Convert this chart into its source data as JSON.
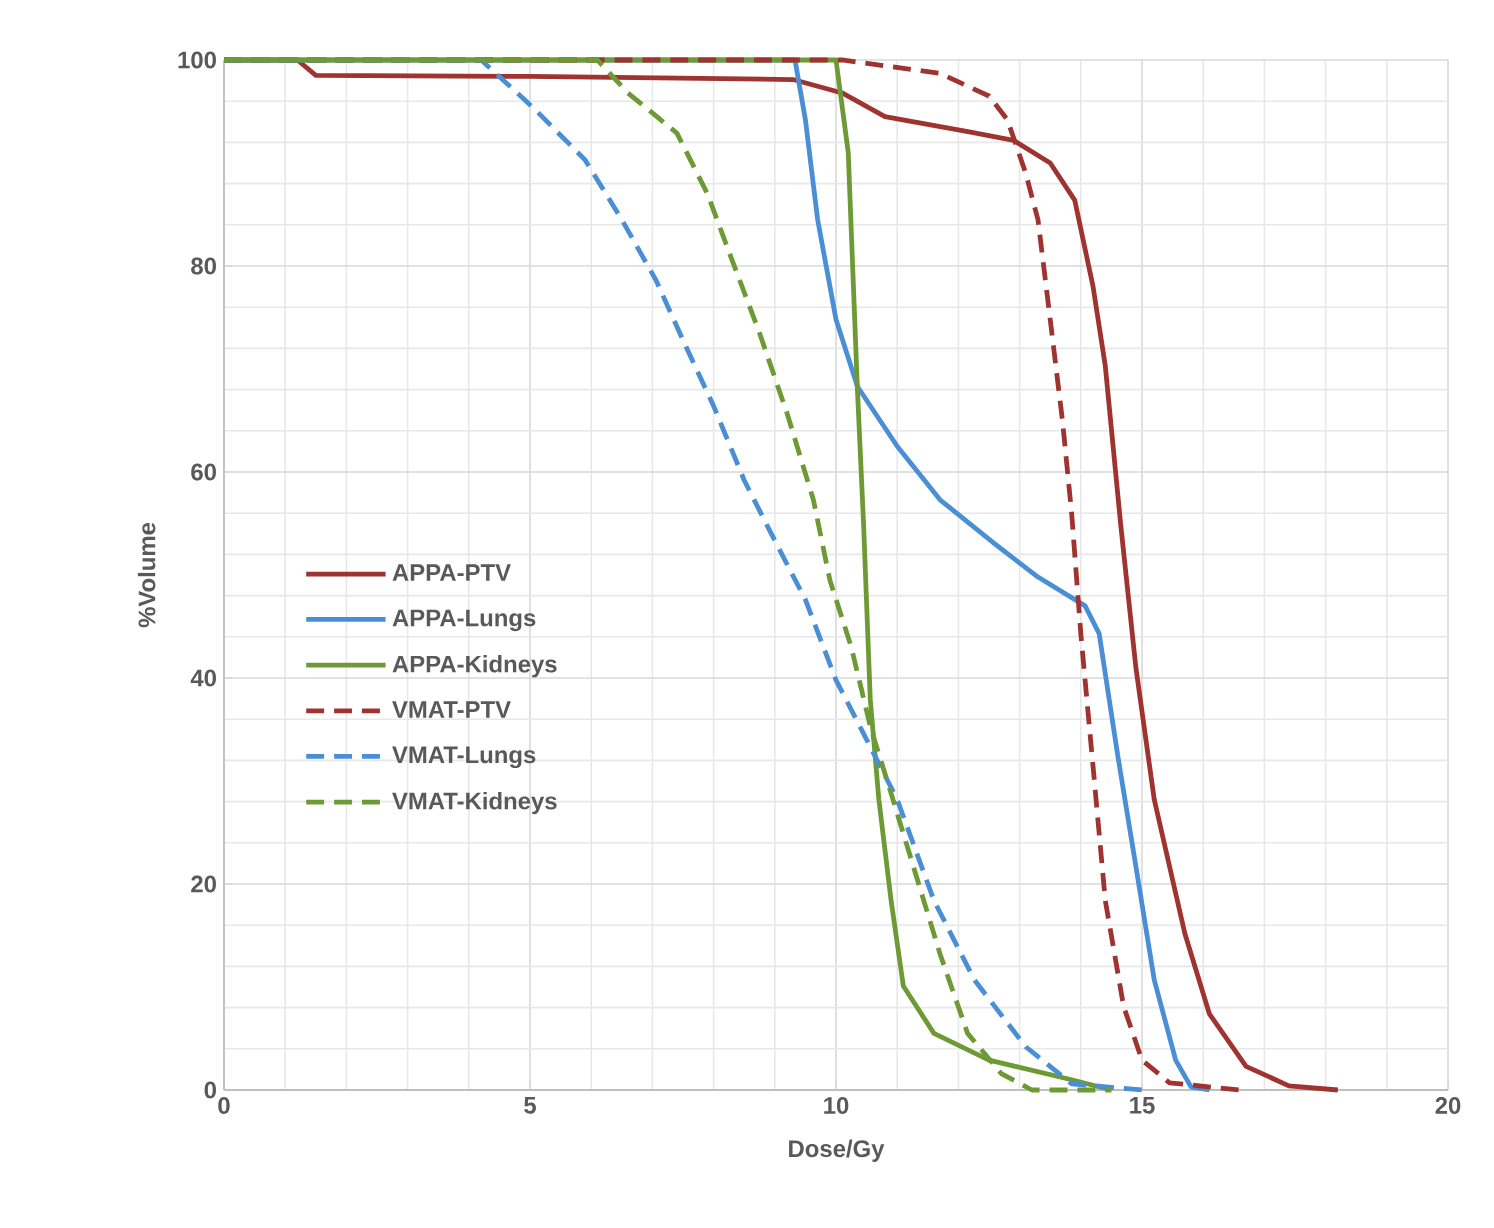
{
  "chart_data": {
    "type": "line",
    "xlabel": "Dose/Gy",
    "ylabel": "%Volume",
    "xlim": [
      0,
      20
    ],
    "ylim": [
      0,
      100
    ],
    "xticks": [
      0,
      5,
      10,
      15,
      20
    ],
    "yticks": [
      0,
      20,
      40,
      60,
      80,
      100
    ],
    "grid": true,
    "legend": "left",
    "marker": "none",
    "series": [
      {
        "name": "APPA-PTV",
        "color": "#9e3330",
        "line_style": "solid",
        "x": [
          0,
          1.2,
          1.5,
          5,
          9.3,
          10.1,
          10.8,
          12.2,
          12.9,
          13.5,
          13.9,
          14.2,
          14.4,
          14.65,
          14.9,
          15.2,
          15.7,
          16.1,
          16.7,
          17.4,
          18.2
        ],
        "values": [
          100,
          100,
          98.5,
          98.4,
          98.1,
          96.8,
          94.5,
          93,
          92.2,
          90,
          86.4,
          78,
          70.3,
          55,
          41,
          28.2,
          15.2,
          7.4,
          2.3,
          0.4,
          0
        ]
      },
      {
        "name": "APPA-Lungs",
        "color": "#4a8fd6",
        "line_style": "solid",
        "x": [
          0,
          9.33,
          9.5,
          9.7,
          10.0,
          10.35,
          11.0,
          11.7,
          12.6,
          13.3,
          14.07,
          14.3,
          14.6,
          14.9,
          15.2,
          15.55,
          15.8,
          16.1
        ],
        "values": [
          100,
          100,
          94.2,
          84.5,
          74.8,
          68.3,
          62.5,
          57.3,
          53,
          49.8,
          47,
          44.3,
          32.6,
          21.7,
          10.7,
          2.9,
          0.3,
          0
        ]
      },
      {
        "name": "APPA-Kidneys",
        "color": "#6e9a35",
        "line_style": "solid",
        "x": [
          0,
          10.0,
          10.2,
          10.35,
          10.45,
          10.56,
          10.7,
          10.9,
          11.1,
          11.6,
          12.5,
          13.85,
          14.5
        ],
        "values": [
          100,
          100,
          91,
          68,
          55,
          37.9,
          28.2,
          18.4,
          10.1,
          5.5,
          2.9,
          1.0,
          0
        ]
      },
      {
        "name": "VMAT-PTV",
        "color": "#9e3330",
        "line_style": "dashed",
        "x": [
          0,
          10.1,
          11.7,
          12.5,
          12.8,
          13.1,
          13.3,
          13.5,
          13.7,
          13.85,
          14.0,
          14.2,
          14.4,
          14.7,
          15.0,
          15.45,
          16.6
        ],
        "values": [
          100,
          100,
          98.7,
          96.5,
          94.2,
          89,
          84.5,
          74.8,
          65,
          56,
          44.3,
          31.4,
          18.4,
          8.1,
          2.9,
          0.7,
          0
        ]
      },
      {
        "name": "VMAT-Lungs",
        "color": "#4a8fd6",
        "line_style": "dashed",
        "x": [
          0,
          4.2,
          5.03,
          5.9,
          6.5,
          7.06,
          7.5,
          8.0,
          8.5,
          8.9,
          9.5,
          10.0,
          10.45,
          11.0,
          11.6,
          12.26,
          13.1,
          13.85,
          15.0
        ],
        "values": [
          100,
          100,
          95.5,
          90.3,
          84.5,
          78.6,
          72.8,
          66.4,
          59.2,
          54.5,
          47.6,
          39.8,
          34.6,
          28.2,
          18.4,
          10.7,
          4.2,
          0.6,
          0
        ]
      },
      {
        "name": "VMAT-Kidneys",
        "color": "#6e9a35",
        "line_style": "dashed",
        "x": [
          0,
          6.1,
          6.6,
          7.4,
          7.9,
          8.3,
          8.75,
          9.2,
          9.63,
          9.9,
          10.25,
          10.56,
          10.9,
          11.3,
          11.7,
          12.15,
          12.7,
          13.2,
          14.5
        ],
        "values": [
          100,
          100,
          96.8,
          92.9,
          87,
          80.6,
          73.5,
          65.7,
          57.3,
          49.5,
          43,
          35.3,
          28.8,
          21,
          13.2,
          5.5,
          1.6,
          0,
          0
        ]
      }
    ]
  }
}
